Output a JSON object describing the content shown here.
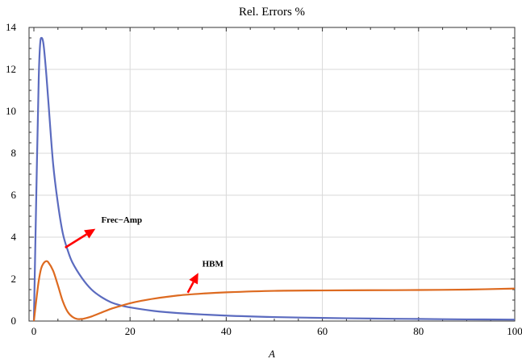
{
  "chart_data": {
    "type": "line",
    "title": "Rel. Errors %",
    "xlabel": "A",
    "ylabel": "",
    "xlim": [
      0,
      100
    ],
    "ylim": [
      0,
      14
    ],
    "xticks": [
      0,
      20,
      40,
      60,
      80,
      100
    ],
    "yticks": [
      0,
      2,
      4,
      6,
      8,
      10,
      12,
      14
    ],
    "grid": true,
    "series": [
      {
        "name": "",
        "color": "#5b6bbf",
        "x": [
          0,
          0.5,
          1,
          1.3,
          1.6,
          2,
          2.5,
          3,
          4,
          5,
          6,
          7,
          8,
          10,
          12,
          14,
          16,
          18,
          20,
          25,
          30,
          40,
          50,
          60,
          70,
          80,
          90,
          100
        ],
        "y": [
          0,
          6.0,
          11.5,
          13.2,
          13.5,
          13.2,
          12.0,
          10.5,
          7.5,
          5.6,
          4.2,
          3.4,
          2.8,
          2.05,
          1.5,
          1.15,
          0.9,
          0.75,
          0.65,
          0.48,
          0.38,
          0.26,
          0.19,
          0.15,
          0.12,
          0.1,
          0.08,
          0.07
        ]
      },
      {
        "name": "",
        "color": "#dd6a20",
        "x": [
          0,
          0.5,
          1,
          1.5,
          2,
          2.5,
          3,
          4,
          5,
          6,
          7,
          8,
          9,
          10,
          11,
          12,
          14,
          16,
          18,
          20,
          22,
          25,
          30,
          35,
          40,
          50,
          60,
          70,
          80,
          90,
          100
        ],
        "y": [
          0,
          1.0,
          1.9,
          2.5,
          2.75,
          2.85,
          2.8,
          2.4,
          1.7,
          0.95,
          0.45,
          0.2,
          0.1,
          0.1,
          0.15,
          0.22,
          0.4,
          0.58,
          0.72,
          0.85,
          0.95,
          1.07,
          1.22,
          1.31,
          1.37,
          1.44,
          1.46,
          1.47,
          1.48,
          1.5,
          1.55
        ]
      }
    ],
    "annotations": [
      {
        "text": "Frec−Amp",
        "x": 14,
        "y": 4.7,
        "arrow_from": [
          6.5,
          3.5
        ],
        "arrow_to": [
          12.8,
          4.4
        ],
        "color": "#ff0000"
      },
      {
        "text": "HBM",
        "x": 35,
        "y": 2.6,
        "arrow_from": [
          32,
          1.35
        ],
        "arrow_to": [
          34.2,
          2.3
        ],
        "color": "#ff0000"
      }
    ]
  }
}
